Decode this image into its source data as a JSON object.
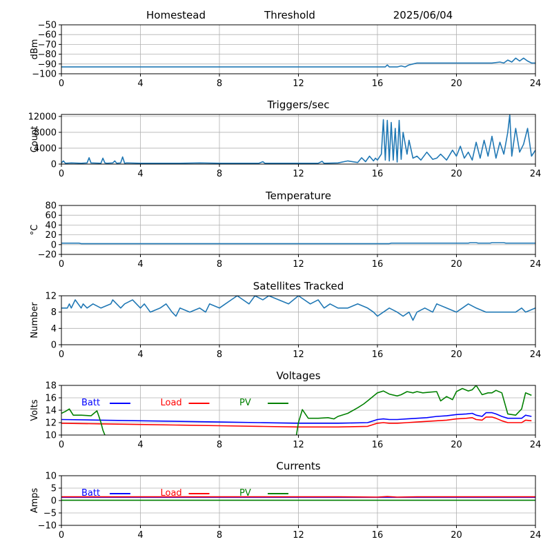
{
  "header": {
    "site": "Homestead",
    "mode": "Threshold",
    "date": "2025/06/04"
  },
  "colors": {
    "series_default": "#1f77b4",
    "batt": "#0000ff",
    "load": "#ff0000",
    "pv": "#008000",
    "grid": "#b0b0b0",
    "axis": "#000000"
  },
  "chart_data": [
    {
      "id": "signal",
      "type": "line",
      "title": "",
      "xlabel": "",
      "ylabel": "dBm",
      "xlim": [
        0,
        24
      ],
      "ylim": [
        -100,
        -50
      ],
      "xticks": [
        0,
        4,
        8,
        12,
        16,
        20,
        24
      ],
      "yticks": [
        -100,
        -90,
        -80,
        -70,
        -60,
        -50
      ],
      "grid": true,
      "series": [
        {
          "color": "#1f77b4",
          "x": [
            0,
            4,
            8,
            12,
            16,
            16.4,
            16.5,
            16.6,
            16.8,
            17.0,
            17.2,
            17.4,
            17.6,
            17.8,
            18.0,
            19.0,
            20.0,
            21.0,
            21.8,
            22.2,
            22.4,
            22.6,
            22.8,
            23.0,
            23.2,
            23.4,
            23.6,
            23.8,
            24
          ],
          "y": [
            -93,
            -93,
            -93,
            -93,
            -93,
            -93,
            -91,
            -93,
            -93,
            -93,
            -92,
            -93,
            -91,
            -90,
            -89,
            -89,
            -89,
            -89,
            -89,
            -88,
            -89,
            -86,
            -88,
            -84,
            -87,
            -84,
            -87,
            -89,
            -89
          ]
        }
      ]
    },
    {
      "id": "triggers",
      "type": "line",
      "title": "Triggers/sec",
      "xlabel": "",
      "ylabel": "Count",
      "xlim": [
        0,
        24
      ],
      "ylim": [
        0,
        12500
      ],
      "xticks": [
        0,
        4,
        8,
        12,
        16,
        20,
        24
      ],
      "yticks": [
        0,
        4000,
        8000,
        12000
      ],
      "grid": true,
      "series": [
        {
          "color": "#1f77b4",
          "x": [
            0,
            0.1,
            0.2,
            0.5,
            1.0,
            1.3,
            1.4,
            1.5,
            2.0,
            2.1,
            2.2,
            2.3,
            2.6,
            2.7,
            2.8,
            3.0,
            3.1,
            3.2,
            3.3,
            4,
            6,
            7,
            8,
            10,
            10.2,
            10.3,
            12,
            13,
            13.2,
            13.3,
            14,
            14.5,
            15,
            15.2,
            15.4,
            15.6,
            15.8,
            15.9,
            16.0,
            16.2,
            16.3,
            16.4,
            16.5,
            16.6,
            16.7,
            16.8,
            16.9,
            17.0,
            17.1,
            17.2,
            17.3,
            17.5,
            17.6,
            17.8,
            18.0,
            18.2,
            18.5,
            18.8,
            19.0,
            19.2,
            19.5,
            19.8,
            20.0,
            20.2,
            20.4,
            20.6,
            20.8,
            21.0,
            21.2,
            21.4,
            21.6,
            21.8,
            22.0,
            22.2,
            22.4,
            22.6,
            22.7,
            22.8,
            23.0,
            23.2,
            23.4,
            23.6,
            23.8,
            24
          ],
          "y": [
            300,
            800,
            200,
            300,
            200,
            300,
            1600,
            300,
            200,
            1500,
            300,
            200,
            300,
            800,
            200,
            300,
            1800,
            200,
            300,
            200,
            200,
            300,
            200,
            200,
            600,
            200,
            200,
            200,
            700,
            200,
            300,
            800,
            400,
            1600,
            600,
            2000,
            800,
            1500,
            1000,
            2500,
            11200,
            1000,
            11000,
            800,
            10500,
            1000,
            9000,
            500,
            11000,
            1200,
            8000,
            2500,
            6000,
            1500,
            2000,
            1000,
            3000,
            1200,
            1500,
            2500,
            1000,
            3500,
            2000,
            4500,
            1500,
            3000,
            1000,
            5500,
            1500,
            6000,
            2000,
            7000,
            1500,
            5500,
            2500,
            8000,
            12400,
            2000,
            9000,
            3000,
            5000,
            9000,
            2000,
            3500
          ]
        }
      ]
    },
    {
      "id": "temperature",
      "type": "line",
      "title": "Temperature",
      "xlabel": "",
      "ylabel": "°C",
      "xlim": [
        0,
        24
      ],
      "ylim": [
        -20,
        80
      ],
      "xticks": [
        0,
        4,
        8,
        12,
        16,
        20,
        24
      ],
      "yticks": [
        -20,
        0,
        20,
        40,
        60,
        80
      ],
      "grid": true,
      "series": [
        {
          "color": "#1f77b4",
          "x": [
            0,
            0.9,
            1.0,
            16.6,
            16.7,
            20.6,
            20.7,
            21.0,
            21.1,
            21.7,
            21.8,
            22.4,
            22.5,
            24
          ],
          "y": [
            3,
            3,
            2,
            2,
            3,
            3,
            4,
            4,
            3,
            3,
            4,
            4,
            3,
            3
          ]
        }
      ]
    },
    {
      "id": "satellites",
      "type": "line",
      "title": "Satellites Tracked",
      "xlabel": "",
      "ylabel": "Number",
      "xlim": [
        0,
        24
      ],
      "ylim": [
        0,
        12
      ],
      "xticks": [
        0,
        4,
        8,
        12,
        16,
        20,
        24
      ],
      "yticks": [
        0,
        4,
        8,
        12
      ],
      "grid": true,
      "series": [
        {
          "color": "#1f77b4",
          "x": [
            0,
            0.3,
            0.4,
            0.5,
            0.7,
            1.0,
            1.1,
            1.3,
            1.6,
            2.0,
            2.5,
            2.6,
            3.0,
            3.2,
            3.6,
            4.0,
            4.2,
            4.5,
            5.0,
            5.3,
            5.6,
            5.8,
            6.0,
            6.5,
            7.0,
            7.3,
            7.5,
            8.0,
            8.3,
            8.6,
            8.9,
            9.2,
            9.5,
            9.8,
            10.2,
            10.5,
            11.0,
            11.5,
            12.0,
            12.3,
            12.6,
            13.0,
            13.3,
            13.6,
            14.0,
            14.5,
            15.0,
            15.5,
            15.8,
            16.0,
            16.3,
            16.6,
            17.0,
            17.3,
            17.6,
            17.8,
            18.0,
            18.4,
            18.8,
            19.0,
            19.5,
            20.0,
            20.3,
            20.6,
            21.0,
            21.5,
            22.0,
            22.5,
            23.0,
            23.3,
            23.5,
            24
          ],
          "y": [
            9,
            9,
            10,
            9,
            11,
            9,
            10,
            9,
            10,
            9,
            10,
            11,
            9,
            10,
            11,
            9,
            10,
            8,
            9,
            10,
            8,
            7,
            9,
            8,
            9,
            8,
            10,
            9,
            10,
            11,
            12,
            11,
            10,
            12,
            11,
            12,
            11,
            10,
            12,
            11,
            10,
            11,
            9,
            10,
            9,
            9,
            10,
            9,
            8,
            7,
            8,
            9,
            8,
            7,
            8,
            6,
            8,
            9,
            8,
            10,
            9,
            8,
            9,
            10,
            9,
            8,
            8,
            8,
            8,
            9,
            8,
            9
          ]
        }
      ]
    },
    {
      "id": "voltages",
      "type": "line",
      "title": "Voltages",
      "xlabel": "",
      "ylabel": "Volts",
      "xlim": [
        0,
        24
      ],
      "ylim": [
        10,
        18
      ],
      "xticks": [
        0,
        4,
        8,
        12,
        16,
        20,
        24
      ],
      "yticks": [
        10,
        12,
        14,
        16,
        18
      ],
      "grid": true,
      "legend": "top-left",
      "series": [
        {
          "name": "Batt",
          "color": "#0000ff",
          "x": [
            0,
            2,
            4,
            6,
            8,
            10,
            12,
            14,
            15.5,
            16,
            16.3,
            16.6,
            17,
            17.5,
            18,
            18.5,
            19,
            19.5,
            20,
            20.5,
            20.8,
            21,
            21.3,
            21.5,
            21.8,
            22,
            22.3,
            22.6,
            23,
            23.3,
            23.5,
            23.8
          ],
          "y": [
            12.5,
            12.4,
            12.3,
            12.2,
            12.1,
            12.0,
            11.9,
            11.9,
            12.0,
            12.5,
            12.6,
            12.5,
            12.5,
            12.6,
            12.7,
            12.8,
            13.0,
            13.1,
            13.3,
            13.4,
            13.5,
            13.2,
            13.0,
            13.6,
            13.6,
            13.4,
            13.0,
            12.7,
            12.7,
            12.7,
            13.2,
            13.0
          ]
        },
        {
          "name": "Load",
          "color": "#ff0000",
          "x": [
            0,
            2,
            4,
            6,
            8,
            10,
            12,
            14,
            15.5,
            16,
            16.3,
            16.6,
            17,
            17.5,
            18,
            18.5,
            19,
            19.5,
            20,
            20.5,
            20.8,
            21,
            21.3,
            21.5,
            21.8,
            22,
            22.3,
            22.6,
            23,
            23.3,
            23.5,
            23.8
          ],
          "y": [
            11.9,
            11.8,
            11.7,
            11.6,
            11.5,
            11.4,
            11.3,
            11.3,
            11.4,
            11.9,
            12.0,
            11.9,
            11.9,
            12.0,
            12.1,
            12.2,
            12.3,
            12.4,
            12.6,
            12.7,
            12.8,
            12.5,
            12.4,
            12.9,
            12.9,
            12.7,
            12.3,
            12.0,
            12.0,
            12.0,
            12.4,
            12.3
          ]
        },
        {
          "name": "PV",
          "color": "#008000",
          "x": [
            0,
            0.2,
            0.4,
            0.6,
            1.0,
            1.5,
            1.8,
            1.9,
            2.0,
            2.1,
            2.2,
            null,
            11.9,
            12.0,
            12.2,
            12.5,
            13.0,
            13.5,
            13.8,
            14.0,
            14.5,
            15.0,
            15.3,
            15.5,
            16.0,
            16.3,
            16.6,
            17.0,
            17.2,
            17.5,
            17.8,
            18.0,
            18.3,
            18.6,
            19.0,
            19.2,
            19.5,
            19.8,
            20.0,
            20.3,
            20.6,
            20.8,
            21.0,
            21.3,
            21.6,
            21.8,
            22.0,
            22.3,
            22.6,
            22.8,
            23.0,
            23.3,
            23.5,
            23.8
          ],
          "y": [
            13.5,
            13.8,
            14.2,
            13.2,
            13.2,
            13.1,
            13.9,
            13.0,
            12.0,
            10.8,
            10.0,
            null,
            10.0,
            12.0,
            14.1,
            12.7,
            12.7,
            12.8,
            12.6,
            13.0,
            13.5,
            14.4,
            15.0,
            15.5,
            16.8,
            17.1,
            16.6,
            16.3,
            16.5,
            17.0,
            16.8,
            17.0,
            16.8,
            16.9,
            17.0,
            15.5,
            16.2,
            15.7,
            17.0,
            17.5,
            17.1,
            17.3,
            18.0,
            16.5,
            16.8,
            16.8,
            17.2,
            16.8,
            13.4,
            13.3,
            13.2,
            14.2,
            16.8,
            16.4
          ]
        }
      ]
    },
    {
      "id": "currents",
      "type": "line",
      "title": "Currents",
      "xlabel": "",
      "ylabel": "Amps",
      "xlim": [
        0,
        24
      ],
      "ylim": [
        -10,
        10
      ],
      "xticks": [
        0,
        4,
        8,
        12,
        16,
        20,
        24
      ],
      "yticks": [
        -10,
        -5,
        0,
        5,
        10
      ],
      "grid": true,
      "legend": "top-left",
      "series": [
        {
          "name": "Batt",
          "color": "#0000ff",
          "x": [
            0,
            4,
            8,
            12,
            16,
            20,
            24
          ],
          "y": [
            1.3,
            1.3,
            1.3,
            1.3,
            1.3,
            1.3,
            1.3
          ]
        },
        {
          "name": "Load",
          "color": "#ff0000",
          "x": [
            0,
            2,
            4,
            6,
            8,
            10,
            12,
            14,
            16,
            16.5,
            17,
            18,
            20,
            22,
            24
          ],
          "y": [
            1.5,
            1.5,
            1.5,
            1.5,
            1.5,
            1.5,
            1.5,
            1.5,
            1.4,
            1.6,
            1.4,
            1.5,
            1.5,
            1.5,
            1.5
          ]
        },
        {
          "name": "PV",
          "color": "#008000",
          "x": [
            0,
            4,
            8,
            12,
            16,
            20,
            24
          ],
          "y": [
            0.1,
            0.1,
            0.1,
            0.1,
            0.1,
            0.1,
            0.1
          ]
        }
      ]
    }
  ]
}
